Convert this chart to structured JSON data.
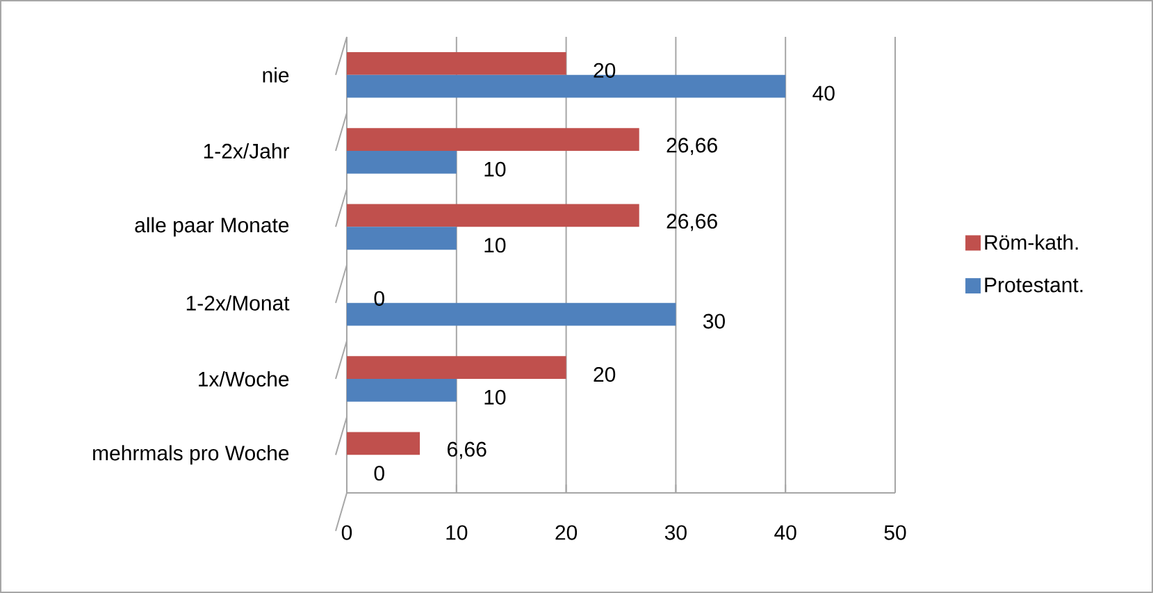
{
  "chart_data": {
    "type": "bar",
    "orientation": "horizontal",
    "categories": [
      "nie",
      "1-2x/Jahr",
      "alle paar  Monate",
      "1-2x/Monat",
      "1x/Woche",
      "mehrmals pro Woche"
    ],
    "series": [
      {
        "name": "Röm-kath.",
        "color": "#c0504d",
        "values": [
          20,
          26.66,
          26.66,
          0,
          20,
          6.66
        ],
        "value_labels": [
          "20",
          "26,66",
          "26,66",
          "0",
          "20",
          "6,66"
        ]
      },
      {
        "name": "Protestant.",
        "color": "#4f81bd",
        "values": [
          40,
          10,
          10,
          30,
          10,
          0
        ],
        "value_labels": [
          "40",
          "10",
          "10",
          "30",
          "10",
          "0"
        ]
      }
    ],
    "xlim": [
      0,
      50
    ],
    "xticks": [
      0,
      10,
      20,
      30,
      40,
      50
    ],
    "grid": "x",
    "legend": "right"
  }
}
